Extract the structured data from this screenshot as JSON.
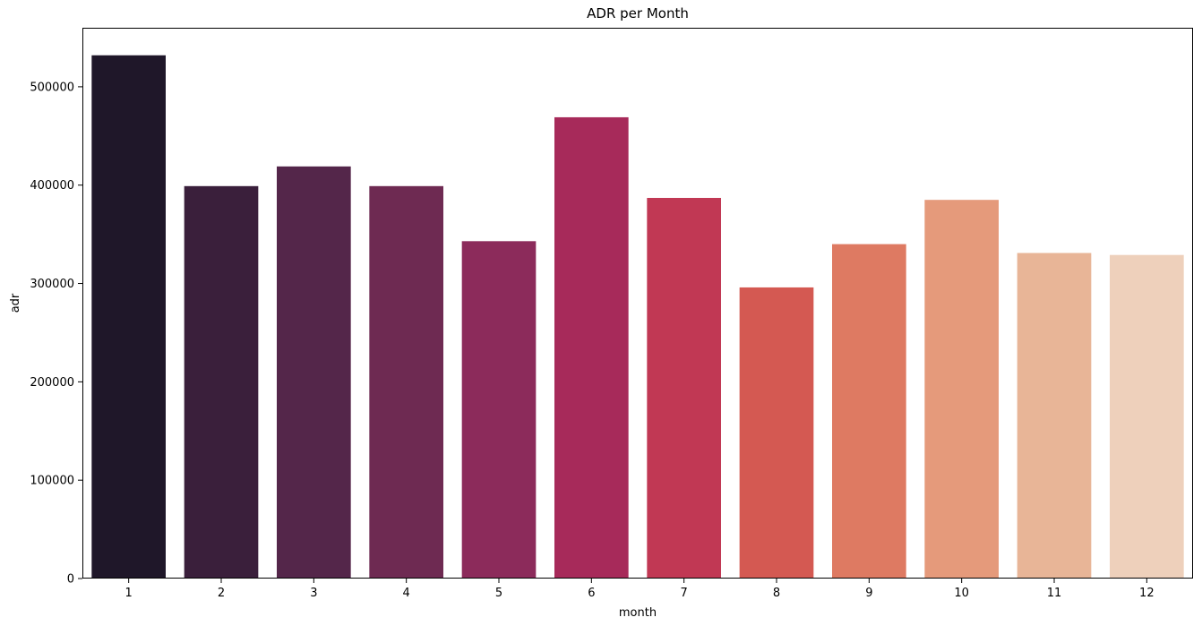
{
  "chart_data": {
    "type": "bar",
    "title": "ADR per Month",
    "xlabel": "month",
    "ylabel": "adr",
    "categories": [
      "1",
      "2",
      "3",
      "4",
      "5",
      "6",
      "7",
      "8",
      "9",
      "10",
      "11",
      "12"
    ],
    "values": [
      532000,
      399000,
      419000,
      399000,
      343000,
      469000,
      387000,
      296000,
      340000,
      385000,
      331000,
      329000
    ],
    "colors": [
      "#1f1729",
      "#3a1f3b",
      "#54264a",
      "#6e2a52",
      "#8c2b5b",
      "#a72a5a",
      "#c13854",
      "#d45952",
      "#de7a62",
      "#e59a7b",
      "#e8b597",
      "#eed0bb"
    ],
    "ylim": [
      0,
      560000
    ],
    "yticks": [
      0,
      100000,
      200000,
      300000,
      400000,
      500000
    ],
    "ytick_labels": [
      "0",
      "100000",
      "200000",
      "300000",
      "400000",
      "500000"
    ],
    "grid": false,
    "legend": "none"
  }
}
